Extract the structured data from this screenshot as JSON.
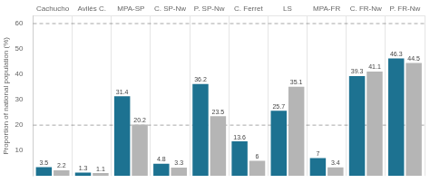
{
  "chart_data": {
    "type": "bar",
    "categories": [
      "Cachucho",
      "Avilés C.",
      "MPA-SP",
      "C. SP-Nw",
      "P. SP-Nw",
      "C. Ferret",
      "LS",
      "MPA-FR",
      "C. FR-Nw",
      "P. FR-Nw"
    ],
    "series": [
      {
        "color": "#1d7291",
        "values": [
          3.5,
          1.3,
          31.4,
          4.8,
          36.2,
          13.6,
          25.7,
          7.0,
          39.3,
          46.3
        ]
      },
      {
        "color": "#b5b5b5",
        "values": [
          2.2,
          1.1,
          20.2,
          3.3,
          23.5,
          6.0,
          35.1,
          3.4,
          41.1,
          44.5
        ]
      }
    ],
    "ylabel": "Proportion of national population (%)",
    "ylim": [
      0,
      63
    ],
    "yticks": [
      10,
      20,
      30,
      40,
      50,
      60
    ],
    "hlines": [
      20,
      60
    ],
    "grid": "x",
    "data_labels": true
  }
}
